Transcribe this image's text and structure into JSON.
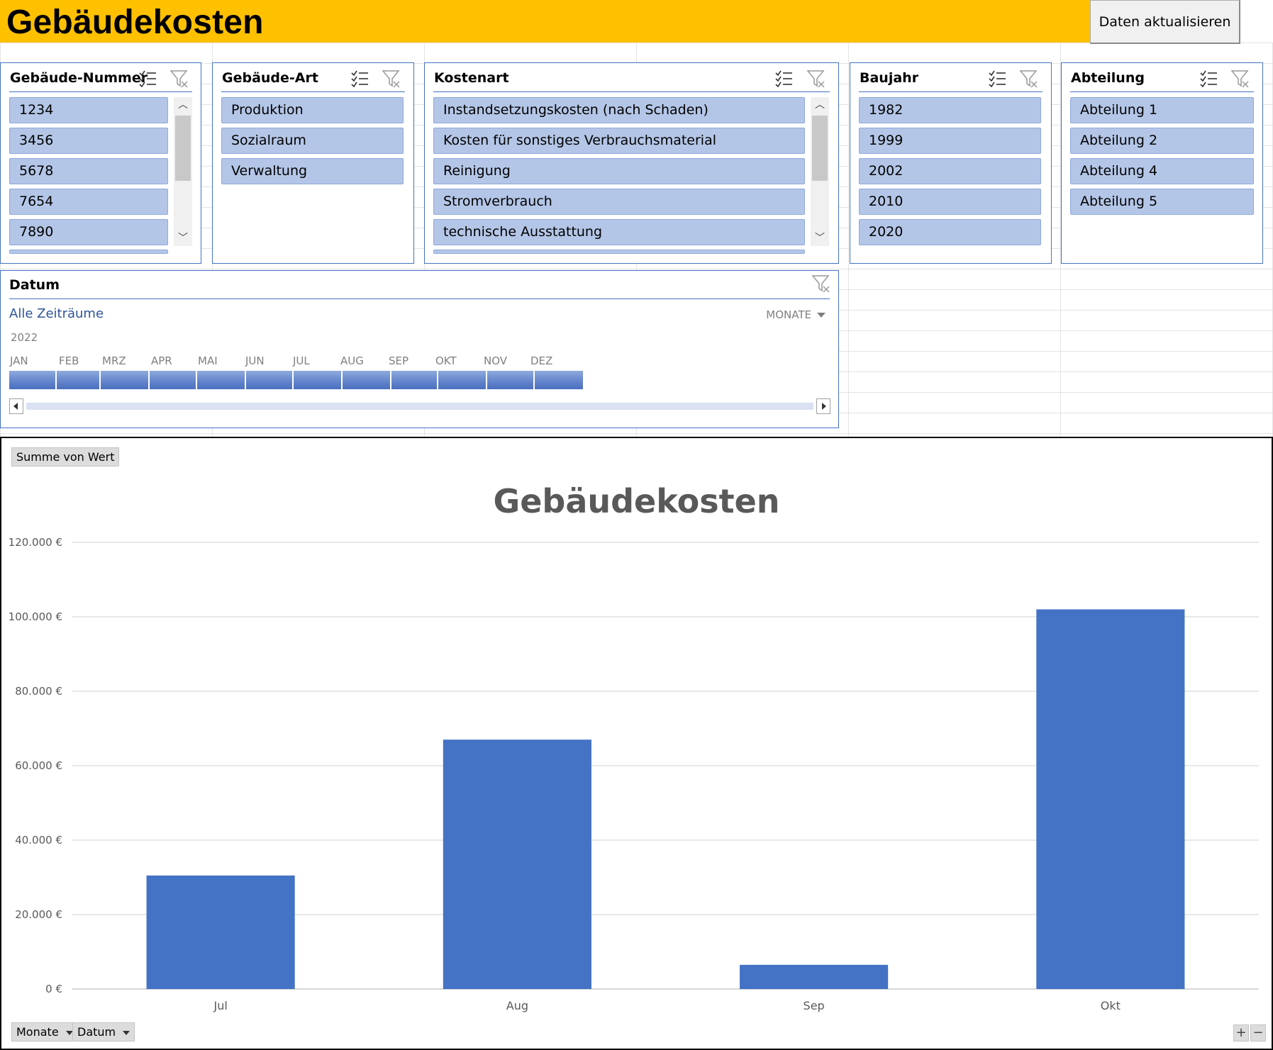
{
  "header": {
    "title": "Gebäudekosten",
    "refresh_button": "Daten aktualisieren",
    "bg_color": "#ffc000"
  },
  "slicers": [
    {
      "title": "Gebäude-Nummer",
      "items": [
        "1234",
        "3456",
        "5678",
        "7654",
        "7890"
      ],
      "has_more": true,
      "scrollbar": true
    },
    {
      "title": "Gebäude-Art",
      "items": [
        "Produktion",
        "Sozialraum",
        "Verwaltung"
      ],
      "has_more": false,
      "scrollbar": false
    },
    {
      "title": "Kostenart",
      "items": [
        "Instandsetzungskosten (nach Schaden)",
        "Kosten für sonstiges Verbrauchsmaterial",
        "Reinigung",
        "Stromverbrauch",
        "technische Ausstattung"
      ],
      "has_more": true,
      "scrollbar": true
    },
    {
      "title": "Baujahr",
      "items": [
        "1982",
        "1999",
        "2002",
        "2010",
        "2020"
      ],
      "has_more": false,
      "scrollbar": false
    },
    {
      "title": "Abteilung",
      "items": [
        "Abteilung 1",
        "Abteilung 2",
        "Abteilung 4",
        "Abteilung 5"
      ],
      "has_more": false,
      "scrollbar": false
    }
  ],
  "timeline": {
    "title": "Datum",
    "all_periods": "Alle Zeiträume",
    "level": "MONATE",
    "year": "2022",
    "months": [
      "JAN",
      "FEB",
      "MRZ",
      "APR",
      "MAI",
      "JUN",
      "JUL",
      "AUG",
      "SEP",
      "OKT",
      "NOV",
      "DEZ"
    ]
  },
  "chart": {
    "value_field": "Summe von Wert",
    "axis_buttons": [
      "Monate",
      "Datum"
    ],
    "zoom_plus": "+",
    "zoom_minus": "−"
  },
  "chart_data": {
    "type": "bar",
    "title": "Gebäudekosten",
    "categories": [
      "Jul",
      "Aug",
      "Sep",
      "Okt"
    ],
    "values": [
      30500,
      67000,
      6500,
      102000
    ],
    "ylim": [
      0,
      120000
    ],
    "yticks": [
      0,
      20000,
      40000,
      60000,
      80000,
      100000,
      120000
    ],
    "ytick_labels": [
      "0 €",
      "20.000 €",
      "40.000 €",
      "60.000 €",
      "80.000 €",
      "100.000 €",
      "120.000 €"
    ],
    "bar_color": "#4472c4",
    "grid": true,
    "legend": "none"
  }
}
